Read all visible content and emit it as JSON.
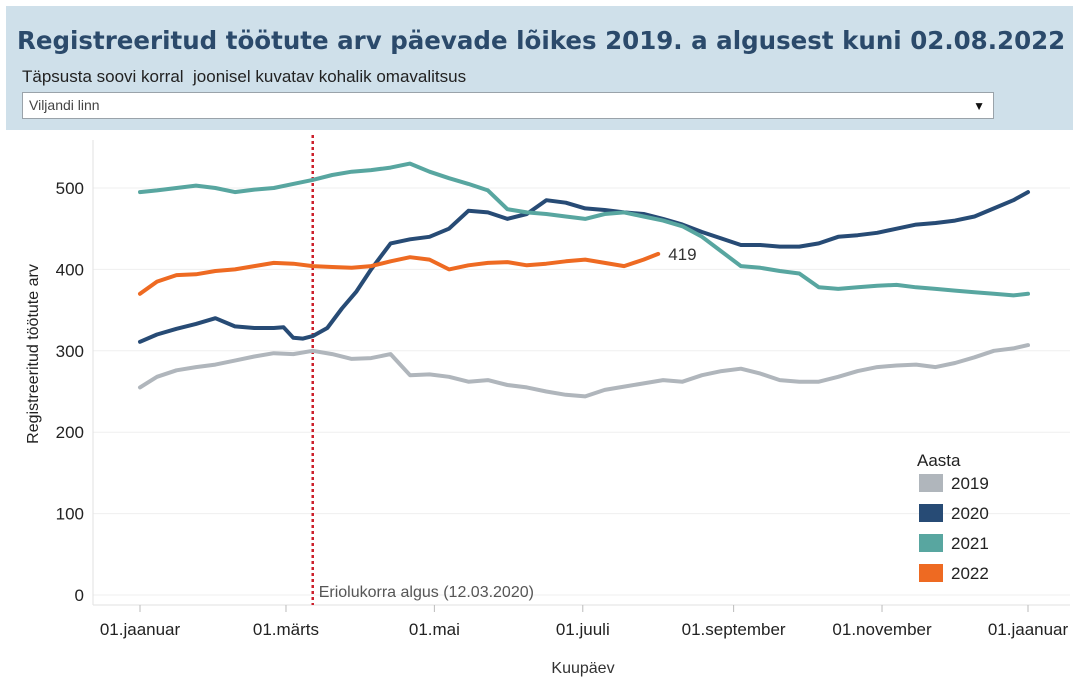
{
  "header": {
    "title": "Registreeritud töötute arv päevade lõikes 2019. a algusest kuni 02.08.2022",
    "filter_label": "Täpsusta soovi korral  joonisel kuvatav kohalik omavalitsus",
    "filter_value": "Viljandi linn"
  },
  "chart_data": {
    "type": "line",
    "ylabel": "Registreeritud töötute arv",
    "xlabel": "Kuupäev",
    "ylim": [
      0,
      550
    ],
    "yticks": [
      0,
      100,
      200,
      300,
      400,
      500
    ],
    "x_unit": "day of year",
    "xlim": [
      1,
      366
    ],
    "xticks": [
      {
        "day": 1,
        "label": "01.jaanuar"
      },
      {
        "day": 61,
        "label": "01.märts"
      },
      {
        "day": 122,
        "label": "01.mai"
      },
      {
        "day": 183,
        "label": "01.juuli"
      },
      {
        "day": 245,
        "label": "01.september"
      },
      {
        "day": 306,
        "label": "01.november"
      },
      {
        "day": 366,
        "label": "01.jaanuar"
      }
    ],
    "grid": true,
    "reference_line": {
      "day": 72,
      "label": "Eriolukorra algus (12.03.2020)",
      "color": "#cc1f2b"
    },
    "end_label": {
      "series": "2022",
      "text": "419"
    },
    "legend": {
      "title": "Aasta",
      "position": "bottom-right"
    },
    "series": [
      {
        "name": "2019",
        "color": "#b0b6bc",
        "x": [
          1,
          8,
          16,
          24,
          32,
          40,
          48,
          56,
          64,
          72,
          80,
          88,
          96,
          104,
          112,
          120,
          128,
          136,
          144,
          152,
          160,
          168,
          176,
          184,
          192,
          200,
          208,
          216,
          224,
          232,
          240,
          248,
          256,
          264,
          272,
          280,
          288,
          296,
          304,
          312,
          320,
          328,
          336,
          344,
          352,
          360,
          366
        ],
        "values": [
          255,
          268,
          276,
          280,
          283,
          288,
          293,
          297,
          296,
          300,
          296,
          290,
          291,
          296,
          270,
          271,
          268,
          262,
          264,
          258,
          255,
          250,
          246,
          244,
          252,
          256,
          260,
          264,
          262,
          270,
          275,
          278,
          272,
          264,
          262,
          262,
          268,
          275,
          280,
          282,
          283,
          280,
          285,
          292,
          300,
          303,
          307
        ]
      },
      {
        "name": "2020",
        "color": "#274b75",
        "x": [
          1,
          8,
          16,
          24,
          32,
          40,
          48,
          56,
          60,
          64,
          68,
          72,
          78,
          84,
          90,
          96,
          104,
          112,
          120,
          128,
          136,
          144,
          152,
          160,
          168,
          176,
          184,
          192,
          200,
          208,
          216,
          224,
          232,
          240,
          248,
          256,
          264,
          272,
          280,
          288,
          296,
          304,
          312,
          320,
          328,
          336,
          344,
          352,
          360,
          366
        ],
        "values": [
          311,
          320,
          327,
          333,
          340,
          330,
          328,
          328,
          329,
          316,
          315,
          318,
          328,
          352,
          373,
          400,
          432,
          437,
          440,
          450,
          472,
          470,
          462,
          468,
          485,
          482,
          475,
          473,
          470,
          468,
          462,
          455,
          446,
          438,
          430,
          430,
          428,
          428,
          432,
          440,
          442,
          445,
          450,
          455,
          457,
          460,
          465,
          475,
          485,
          495
        ]
      },
      {
        "name": "2021",
        "color": "#58a6a0",
        "x": [
          1,
          8,
          16,
          24,
          32,
          40,
          48,
          56,
          64,
          72,
          80,
          88,
          96,
          104,
          112,
          120,
          128,
          136,
          144,
          152,
          160,
          168,
          176,
          184,
          192,
          200,
          208,
          216,
          224,
          232,
          240,
          248,
          256,
          264,
          272,
          280,
          288,
          296,
          304,
          312,
          320,
          328,
          336,
          344,
          352,
          360,
          366
        ],
        "values": [
          495,
          497,
          500,
          503,
          500,
          495,
          498,
          500,
          505,
          510,
          516,
          520,
          522,
          525,
          530,
          520,
          512,
          505,
          497,
          474,
          470,
          468,
          465,
          462,
          468,
          470,
          465,
          460,
          453,
          440,
          422,
          404,
          402,
          398,
          395,
          378,
          376,
          378,
          380,
          381,
          378,
          376,
          374,
          372,
          370,
          368,
          370
        ]
      },
      {
        "name": "2022",
        "color": "#ee6a22",
        "x": [
          1,
          8,
          16,
          24,
          32,
          40,
          48,
          56,
          64,
          72,
          80,
          88,
          96,
          104,
          112,
          120,
          128,
          136,
          144,
          152,
          160,
          168,
          176,
          184,
          192,
          200,
          208,
          214
        ],
        "values": [
          370,
          385,
          393,
          394,
          398,
          400,
          404,
          408,
          407,
          404,
          403,
          402,
          404,
          410,
          415,
          412,
          400,
          405,
          408,
          409,
          405,
          407,
          410,
          412,
          408,
          404,
          412,
          419
        ]
      }
    ]
  }
}
